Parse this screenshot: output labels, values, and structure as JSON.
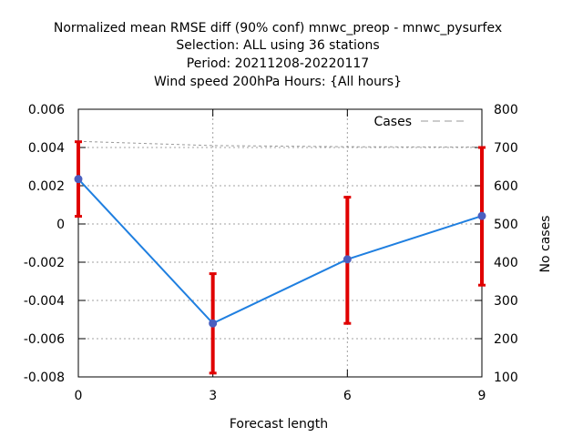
{
  "chart_data": {
    "type": "line",
    "title_lines": [
      "Normalized mean RMSE diff (90% conf) mnwc_preop - mnwc_pysurfex",
      "Selection: ALL using    36 stations",
      "Period: 20211208-20220117",
      "Wind speed 200hPa   Hours: {All hours}"
    ],
    "xlabel": "Forecast length",
    "ylabel": "",
    "y2label": "No cases",
    "xlim": [
      0,
      9
    ],
    "ylim": [
      -0.008,
      0.006
    ],
    "y2lim": [
      100,
      800
    ],
    "xticks": [
      0,
      3,
      6,
      9
    ],
    "xtick_labels": [
      "0",
      "3",
      "6",
      "9"
    ],
    "yticks": [
      -0.008,
      -0.006,
      -0.004,
      -0.002,
      0,
      0.002,
      0.004,
      0.006
    ],
    "ytick_labels": [
      "-0.008",
      "-0.006",
      "-0.004",
      "-0.002",
      "0",
      "0.002",
      "0.004",
      "0.006"
    ],
    "y2ticks": [
      100,
      200,
      300,
      400,
      500,
      600,
      700,
      800
    ],
    "y2tick_labels": [
      "100",
      "200",
      "300",
      "400",
      "500",
      "600",
      "700",
      "800"
    ],
    "grid": true,
    "legend": {
      "position": "top-right",
      "entries": [
        "Cases"
      ]
    },
    "series": [
      {
        "kind": "line-errorbar",
        "x": [
          0,
          3,
          6,
          9
        ],
        "y": [
          0.00235,
          -0.0052,
          -0.00185,
          0.00042
        ],
        "err_low": [
          0.0004,
          -0.0078,
          -0.0052,
          -0.0032
        ],
        "err_high": [
          0.0043,
          -0.0026,
          0.0014,
          0.004
        ],
        "color": "#1f7fe0",
        "marker_color": "#4a5fc0",
        "error_color": "#e00000"
      },
      {
        "name": "Cases",
        "kind": "dashed",
        "axis": "y2",
        "x": [
          0,
          3,
          6,
          9
        ],
        "y": [
          716,
          705,
          702,
          701
        ],
        "color": "#999999"
      }
    ]
  }
}
